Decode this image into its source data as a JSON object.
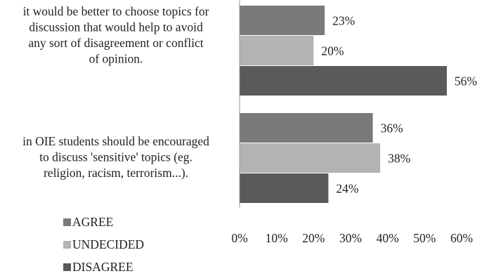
{
  "chart_data": {
    "type": "bar",
    "orientation": "horizontal",
    "categories": [
      "it would be better to choose topics for discussion that would help to avoid any sort of disagreement or conflict of opinion.",
      "in OIE students should be encouraged to discuss 'sensitive' topics (eg. religion, racism, terrorism...)."
    ],
    "category_lines": [
      [
        "it would be better to choose topics for",
        "discussion that would help to avoid",
        "any sort of disagreement or conflict",
        "of opinion."
      ],
      [
        "in OIE students should be encouraged",
        "to discuss 'sensitive' topics (eg.",
        "religion, racism, terrorism...)."
      ]
    ],
    "series": [
      {
        "name": "AGREE",
        "color": "#7a7a7a",
        "values": [
          23,
          36
        ],
        "labels": [
          "23%",
          "36%"
        ]
      },
      {
        "name": "UNDECIDED",
        "color": "#b3b3b3",
        "values": [
          20,
          38
        ],
        "labels": [
          "20%",
          "38%"
        ]
      },
      {
        "name": "DISAGREE",
        "color": "#5a5a5a",
        "values": [
          56,
          24
        ],
        "labels": [
          "56%",
          "24%"
        ]
      }
    ],
    "xlim": [
      0,
      60
    ],
    "xticks": [
      "0%",
      "10%",
      "20%",
      "30%",
      "40%",
      "50%",
      "60%"
    ],
    "grid": false,
    "legend_position": "bottom-left"
  }
}
